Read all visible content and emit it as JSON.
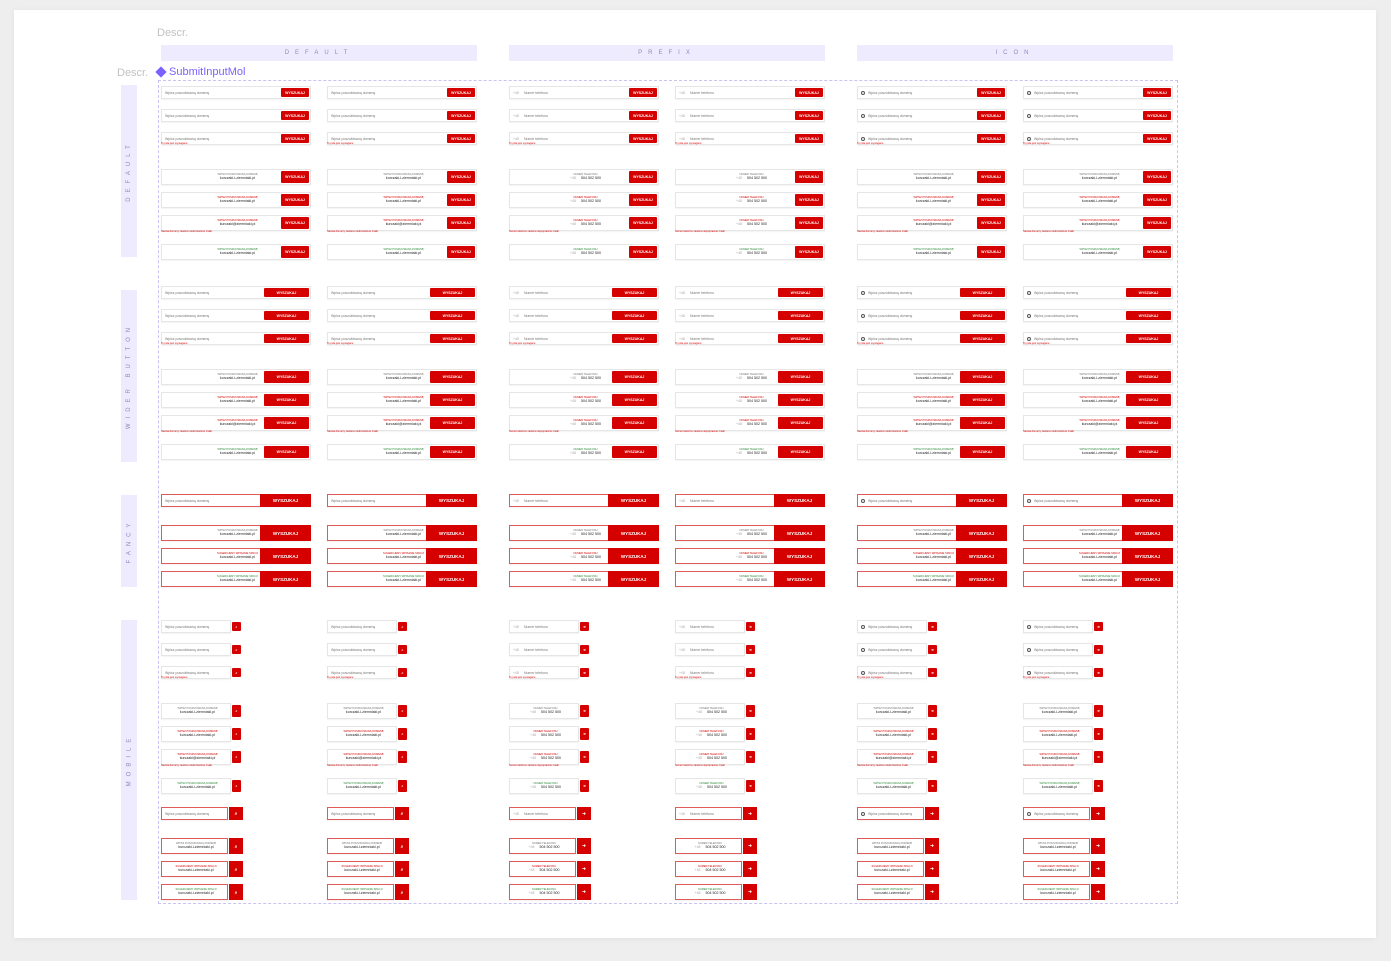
{
  "descr_label": "Descr.",
  "component_title": "SubmitInputMol",
  "column_headers": [
    "DEFAULT",
    "PREFIX",
    "ICON"
  ],
  "row_headers": [
    "DEFAULT",
    "WIDER BUTTON",
    "FANCY",
    "MOBILE"
  ],
  "button_text": "WYSZUKAJ",
  "arrow_glyph": "➜",
  "search_glyph": "⌕",
  "placeholders": {
    "default": "Wpisz poszukiwaną domenę",
    "prefix": "Numer telefonu",
    "icon": "Wpisz poszukiwaną domenę"
  },
  "phone_prefix": "+48",
  "labels": {
    "default": "WPISZ POSZUKIWANĄ DOMENĘ",
    "fancy": "SUGERUJEMY WPISANIE SPACJI",
    "prefix": "NUMER TELEFONU"
  },
  "values": {
    "domain": "kurczaki-i-ziemniaki.pl",
    "domain_error": "kurczaki@ziemniaki.pl",
    "phone": "504 502 500"
  },
  "messages": {
    "required": "To pole jest wymagane",
    "invalid_domain": "Nazwa domeny zawiera niedozwolone znaki",
    "invalid_phone": "Numer telefonu zawiera niepoprawne znaki"
  },
  "colors": {
    "accent": "#d50000",
    "header_bg": "#eeebff",
    "frame_border": "#c9c2f5",
    "success": "#2e8b3a"
  }
}
